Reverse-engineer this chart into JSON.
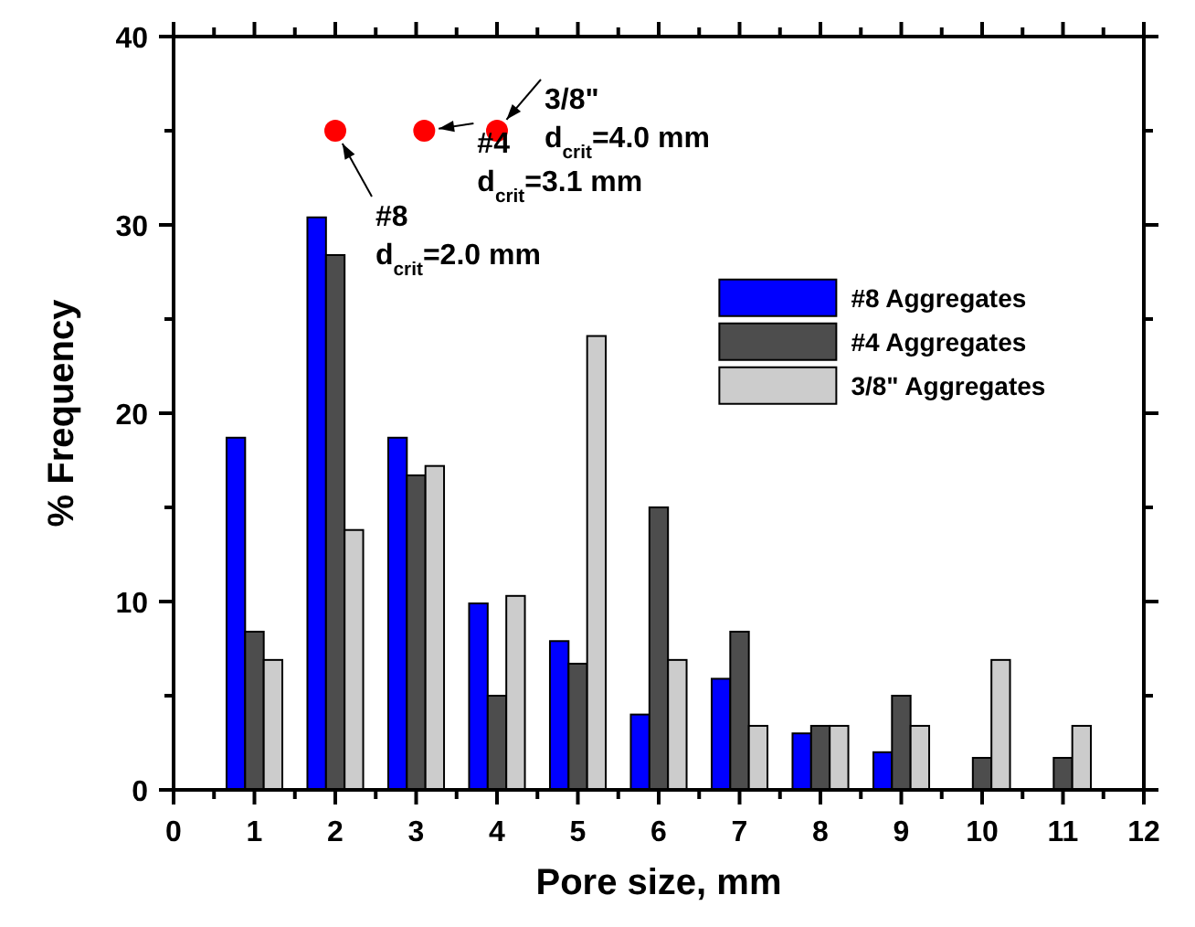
{
  "chart_data": {
    "type": "bar",
    "xlabel": "Pore size, mm",
    "ylabel": "% Frequency",
    "x": [
      1,
      2,
      3,
      4,
      5,
      6,
      7,
      8,
      9,
      10,
      11
    ],
    "xlim": [
      0,
      12
    ],
    "xticks": [
      0,
      1,
      2,
      3,
      4,
      5,
      6,
      7,
      8,
      9,
      10,
      11,
      12
    ],
    "ylim": [
      0,
      40
    ],
    "yticks": [
      0,
      10,
      20,
      30,
      40
    ],
    "legend": "top right",
    "series": [
      {
        "name": "#8 Aggregates",
        "color": "#0000ff",
        "values": [
          18.7,
          30.4,
          18.7,
          9.9,
          7.9,
          4.0,
          5.9,
          3.0,
          2.0,
          0,
          0
        ]
      },
      {
        "name": "#4 Aggregates",
        "color": "#4d4d4d",
        "values": [
          8.4,
          28.4,
          16.7,
          5.0,
          6.7,
          15.0,
          8.4,
          3.4,
          5.0,
          1.7,
          1.7
        ]
      },
      {
        "name": "3/8\" Aggregates",
        "color": "#cccccc",
        "values": [
          6.9,
          13.8,
          17.2,
          10.3,
          24.1,
          6.9,
          3.4,
          3.4,
          3.4,
          6.9,
          3.4
        ]
      },
      {
        "type": "scatter",
        "color": "#ff0000",
        "marker": "circle",
        "x": [
          2.0,
          3.1,
          4.0
        ],
        "values": [
          35,
          35,
          35
        ]
      }
    ],
    "annotations": [
      {
        "text": "#8\nd$_{crit}$=2.0 mm",
        "x": 2.0,
        "y": 35
      },
      {
        "text": "#4\nd$_{crit}$=3.1 mm",
        "x": 3.1,
        "y": 35
      },
      {
        "text": "3/8\"\nd$_{crit}$=4.0 mm",
        "x": 4.0,
        "y": 35
      }
    ]
  }
}
